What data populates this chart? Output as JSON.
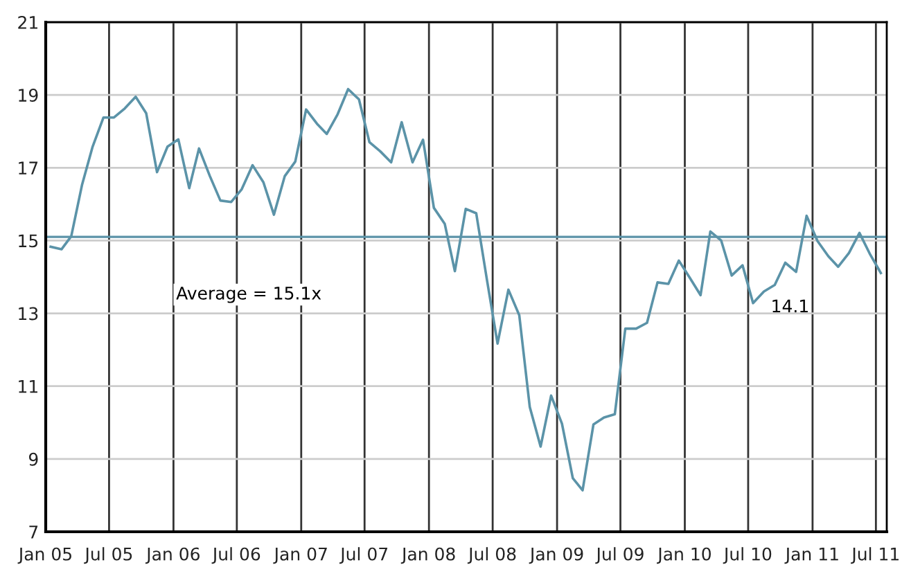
{
  "chart_data": {
    "type": "line",
    "x": [
      "2005-01-15",
      "2005-02-15",
      "2005-03-15",
      "2005-04-15",
      "2005-05-15",
      "2005-06-15",
      "2005-07-15",
      "2005-08-15",
      "2005-09-15",
      "2005-10-15",
      "2005-11-15",
      "2005-12-15",
      "2006-01-15",
      "2006-02-15",
      "2006-03-15",
      "2006-04-15",
      "2006-05-15",
      "2006-06-15",
      "2006-07-15",
      "2006-08-15",
      "2006-09-15",
      "2006-10-15",
      "2006-11-15",
      "2006-12-15",
      "2007-01-15",
      "2007-02-15",
      "2007-03-15",
      "2007-04-15",
      "2007-05-15",
      "2007-06-15",
      "2007-07-15",
      "2007-08-15",
      "2007-09-15",
      "2007-10-15",
      "2007-11-15",
      "2007-12-15",
      "2008-01-15",
      "2008-02-15",
      "2008-03-15",
      "2008-04-15",
      "2008-05-15",
      "2008-06-15",
      "2008-07-15",
      "2008-08-15",
      "2008-09-15",
      "2008-10-15",
      "2008-11-15",
      "2008-12-15",
      "2009-01-15",
      "2009-02-15",
      "2009-03-15",
      "2009-04-15",
      "2009-05-15",
      "2009-06-15",
      "2009-07-15",
      "2009-08-15",
      "2009-09-15",
      "2009-10-15",
      "2009-11-15",
      "2009-12-15",
      "2010-01-15",
      "2010-02-15",
      "2010-03-15",
      "2010-04-15",
      "2010-05-15",
      "2010-06-15",
      "2010-07-15",
      "2010-08-15",
      "2010-09-15",
      "2010-10-15",
      "2010-11-15",
      "2010-12-15",
      "2011-01-15",
      "2011-02-15",
      "2011-03-15",
      "2011-04-15",
      "2011-05-15",
      "2011-06-15",
      "2011-07-15"
    ],
    "series": [
      {
        "color": "#5b93a8",
        "values": [
          14.83,
          14.76,
          15.12,
          16.54,
          17.58,
          18.38,
          18.38,
          18.63,
          18.95,
          18.5,
          16.88,
          17.58,
          17.78,
          16.44,
          17.53,
          16.77,
          16.1,
          16.06,
          16.41,
          17.07,
          16.6,
          15.71,
          16.77,
          17.17,
          18.6,
          18.21,
          17.93,
          18.47,
          19.16,
          18.88,
          17.7,
          17.45,
          17.15,
          18.25,
          17.15,
          17.77,
          15.9,
          15.46,
          14.16,
          15.87,
          15.75,
          13.9,
          12.17,
          13.65,
          12.95,
          10.43,
          9.34,
          10.74,
          9.97,
          8.47,
          8.14,
          9.95,
          10.14,
          10.23,
          12.58,
          12.58,
          12.74,
          13.85,
          13.81,
          14.45,
          13.98,
          13.5,
          15.25,
          15.0,
          14.04,
          14.32,
          13.28,
          13.6,
          13.78,
          14.39,
          14.14,
          15.68,
          14.99,
          14.57,
          14.28,
          14.66,
          15.21,
          14.61,
          14.11
        ]
      }
    ],
    "xlim": [
      "2005-01",
      "2011-08"
    ],
    "xticks": [
      {
        "value": "2005-01",
        "label": "Jan 05"
      },
      {
        "value": "2005-07",
        "label": "Jul 05"
      },
      {
        "value": "2006-01",
        "label": "Jan 06"
      },
      {
        "value": "2006-07",
        "label": "Jul 06"
      },
      {
        "value": "2007-01",
        "label": "Jan 07"
      },
      {
        "value": "2007-07",
        "label": "Jul 07"
      },
      {
        "value": "2008-01",
        "label": "Jan 08"
      },
      {
        "value": "2008-07",
        "label": "Jul 08"
      },
      {
        "value": "2009-01",
        "label": "Jan 09"
      },
      {
        "value": "2009-07",
        "label": "Jul 09"
      },
      {
        "value": "2010-01",
        "label": "Jan 10"
      },
      {
        "value": "2010-07",
        "label": "Jul 10"
      },
      {
        "value": "2011-01",
        "label": "Jan 11"
      },
      {
        "value": "2011-07",
        "label": "Jul 11"
      }
    ],
    "ylim": [
      7,
      21
    ],
    "yticks": [
      7,
      9,
      11,
      13,
      15,
      17,
      19,
      21
    ],
    "grid": true,
    "ref_lines": [
      {
        "axis": "y",
        "value": 15.1,
        "label": "Average = 15.1x",
        "color": "#5b93a8"
      }
    ],
    "annotations": [
      "14.1"
    ]
  }
}
